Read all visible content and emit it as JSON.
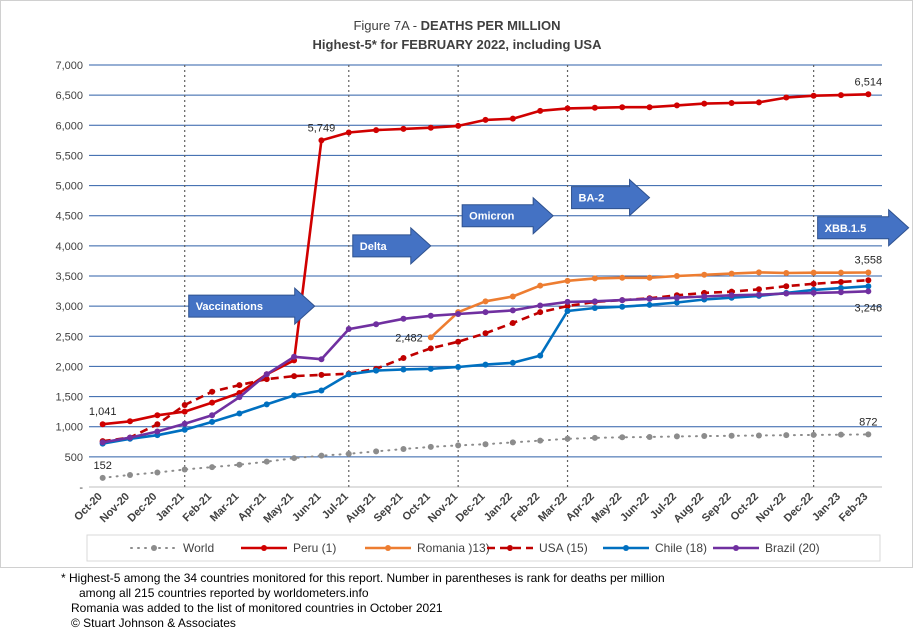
{
  "chart_data": {
    "type": "line",
    "title_prefix": "Figure 7A - ",
    "title_bold": "DEATHS PER MILLION",
    "subtitle_prefix": "Highest-5* for  ",
    "subtitle_bold": "FEBRUARY 2022",
    "subtitle_suffix": ", including USA",
    "ylim": [
      0,
      7000
    ],
    "yticks": [
      "-",
      "500",
      "1,000",
      "1,500",
      "2,000",
      "2,500",
      "3,000",
      "3,500",
      "4,000",
      "4,500",
      "5,000",
      "5,500",
      "6,000",
      "6,500",
      "7,000"
    ],
    "grid": "horizontal",
    "legend_position": "bottom",
    "categories": [
      "Oct-20",
      "Nov-20",
      "Dec-20",
      "Jan-21",
      "Feb-21",
      "Mar-21",
      "Apr-21",
      "May-21",
      "Jun-21",
      "Jul-21",
      "Aug-21",
      "Sep-21",
      "Oct-21",
      "Nov-21",
      "Dec-21",
      "Jan-22",
      "Feb-22",
      "Mar-22",
      "Apr-22",
      "May-22",
      "Jun-22",
      "Jul-22",
      "Aug-22",
      "Sep-22",
      "Oct-22",
      "Nov-22",
      "Dec-22",
      "Jan-23",
      "Feb-23"
    ],
    "series": [
      {
        "name": "World",
        "color": "#8c8c8c",
        "style": "dotted",
        "values": [
          152,
          200,
          240,
          290,
          330,
          370,
          420,
          480,
          520,
          550,
          590,
          630,
          665,
          690,
          710,
          740,
          770,
          800,
          815,
          825,
          830,
          840,
          845,
          850,
          855,
          860,
          865,
          868,
          872
        ]
      },
      {
        "name": "Peru (1)",
        "color": "#d00000",
        "style": "solid",
        "values": [
          1041,
          1090,
          1190,
          1250,
          1400,
          1560,
          1870,
          2100,
          5749,
          5880,
          5920,
          5940,
          5960,
          5990,
          6090,
          6110,
          6240,
          6280,
          6290,
          6300,
          6300,
          6330,
          6360,
          6370,
          6380,
          6460,
          6490,
          6500,
          6514
        ]
      },
      {
        "name": "Romania )13)",
        "color": "#ed7d31",
        "style": "solid",
        "values": [
          null,
          null,
          null,
          null,
          null,
          null,
          null,
          null,
          null,
          null,
          null,
          null,
          2482,
          2900,
          3080,
          3160,
          3340,
          3420,
          3460,
          3470,
          3470,
          3500,
          3520,
          3540,
          3560,
          3550,
          3555,
          3555,
          3558
        ]
      },
      {
        "name": "USA (15)",
        "color": "#c00000",
        "style": "dashed",
        "values": [
          760,
          820,
          1040,
          1360,
          1580,
          1690,
          1790,
          1840,
          1860,
          1880,
          1960,
          2140,
          2300,
          2410,
          2550,
          2720,
          2900,
          3000,
          3070,
          3100,
          3130,
          3180,
          3220,
          3240,
          3280,
          3330,
          3370,
          3400,
          3430
        ]
      },
      {
        "name": "Chile (18)",
        "color": "#0070c0",
        "style": "solid",
        "values": [
          720,
          800,
          860,
          950,
          1080,
          1220,
          1370,
          1520,
          1600,
          1870,
          1930,
          1950,
          1960,
          1990,
          2030,
          2060,
          2180,
          2920,
          2970,
          2990,
          3020,
          3060,
          3110,
          3140,
          3170,
          3220,
          3270,
          3300,
          3330
        ]
      },
      {
        "name": "Brazil (20)",
        "color": "#7030a0",
        "style": "solid",
        "values": [
          740,
          820,
          920,
          1050,
          1190,
          1490,
          1870,
          2160,
          2120,
          2620,
          2700,
          2790,
          2840,
          2870,
          2900,
          2930,
          3010,
          3070,
          3080,
          3100,
          3120,
          3140,
          3160,
          3180,
          3190,
          3210,
          3220,
          3230,
          3246
        ]
      }
    ],
    "data_labels": [
      {
        "series": 1,
        "index": 0,
        "text": "1,041",
        "pos": "above"
      },
      {
        "series": 1,
        "index": 8,
        "text": "5,749",
        "pos": "above"
      },
      {
        "series": 1,
        "index": 28,
        "text": "6,514",
        "pos": "above"
      },
      {
        "series": 2,
        "index": 12,
        "text": "2,482",
        "pos": "left"
      },
      {
        "series": 2,
        "index": 28,
        "text": "3,558",
        "pos": "above"
      },
      {
        "series": 5,
        "index": 28,
        "text": "3,246",
        "pos": "below"
      },
      {
        "series": 0,
        "index": 0,
        "text": "152",
        "pos": "above"
      },
      {
        "series": 0,
        "index": 28,
        "text": "872",
        "pos": "above"
      }
    ],
    "annotations": [
      {
        "text": "Vaccinations",
        "index": 3,
        "y": 3000
      },
      {
        "text": "Delta",
        "index": 9,
        "y": 4000
      },
      {
        "text": "Omicron",
        "index": 13,
        "y": 4500
      },
      {
        "text": "BA-2",
        "index": 17,
        "y": 4800
      },
      {
        "text": "XBB.1.5",
        "index": 26,
        "y": 4300
      }
    ],
    "vertical_markers": [
      3,
      9,
      13,
      17,
      26
    ]
  },
  "colors": {
    "arrow": "#4472c4",
    "grid": "#2e5fa8",
    "marker_line": "#606060"
  },
  "footnotes": [
    "* Highest-5 among the 34 countries monitored for this report. Number in parentheses is rank for deaths per million",
    "among all 215 countries reported by worldometers.info",
    "Romania was added to the list of monitored countries in October 2021",
    "© Stuart Johnson & Associates"
  ]
}
